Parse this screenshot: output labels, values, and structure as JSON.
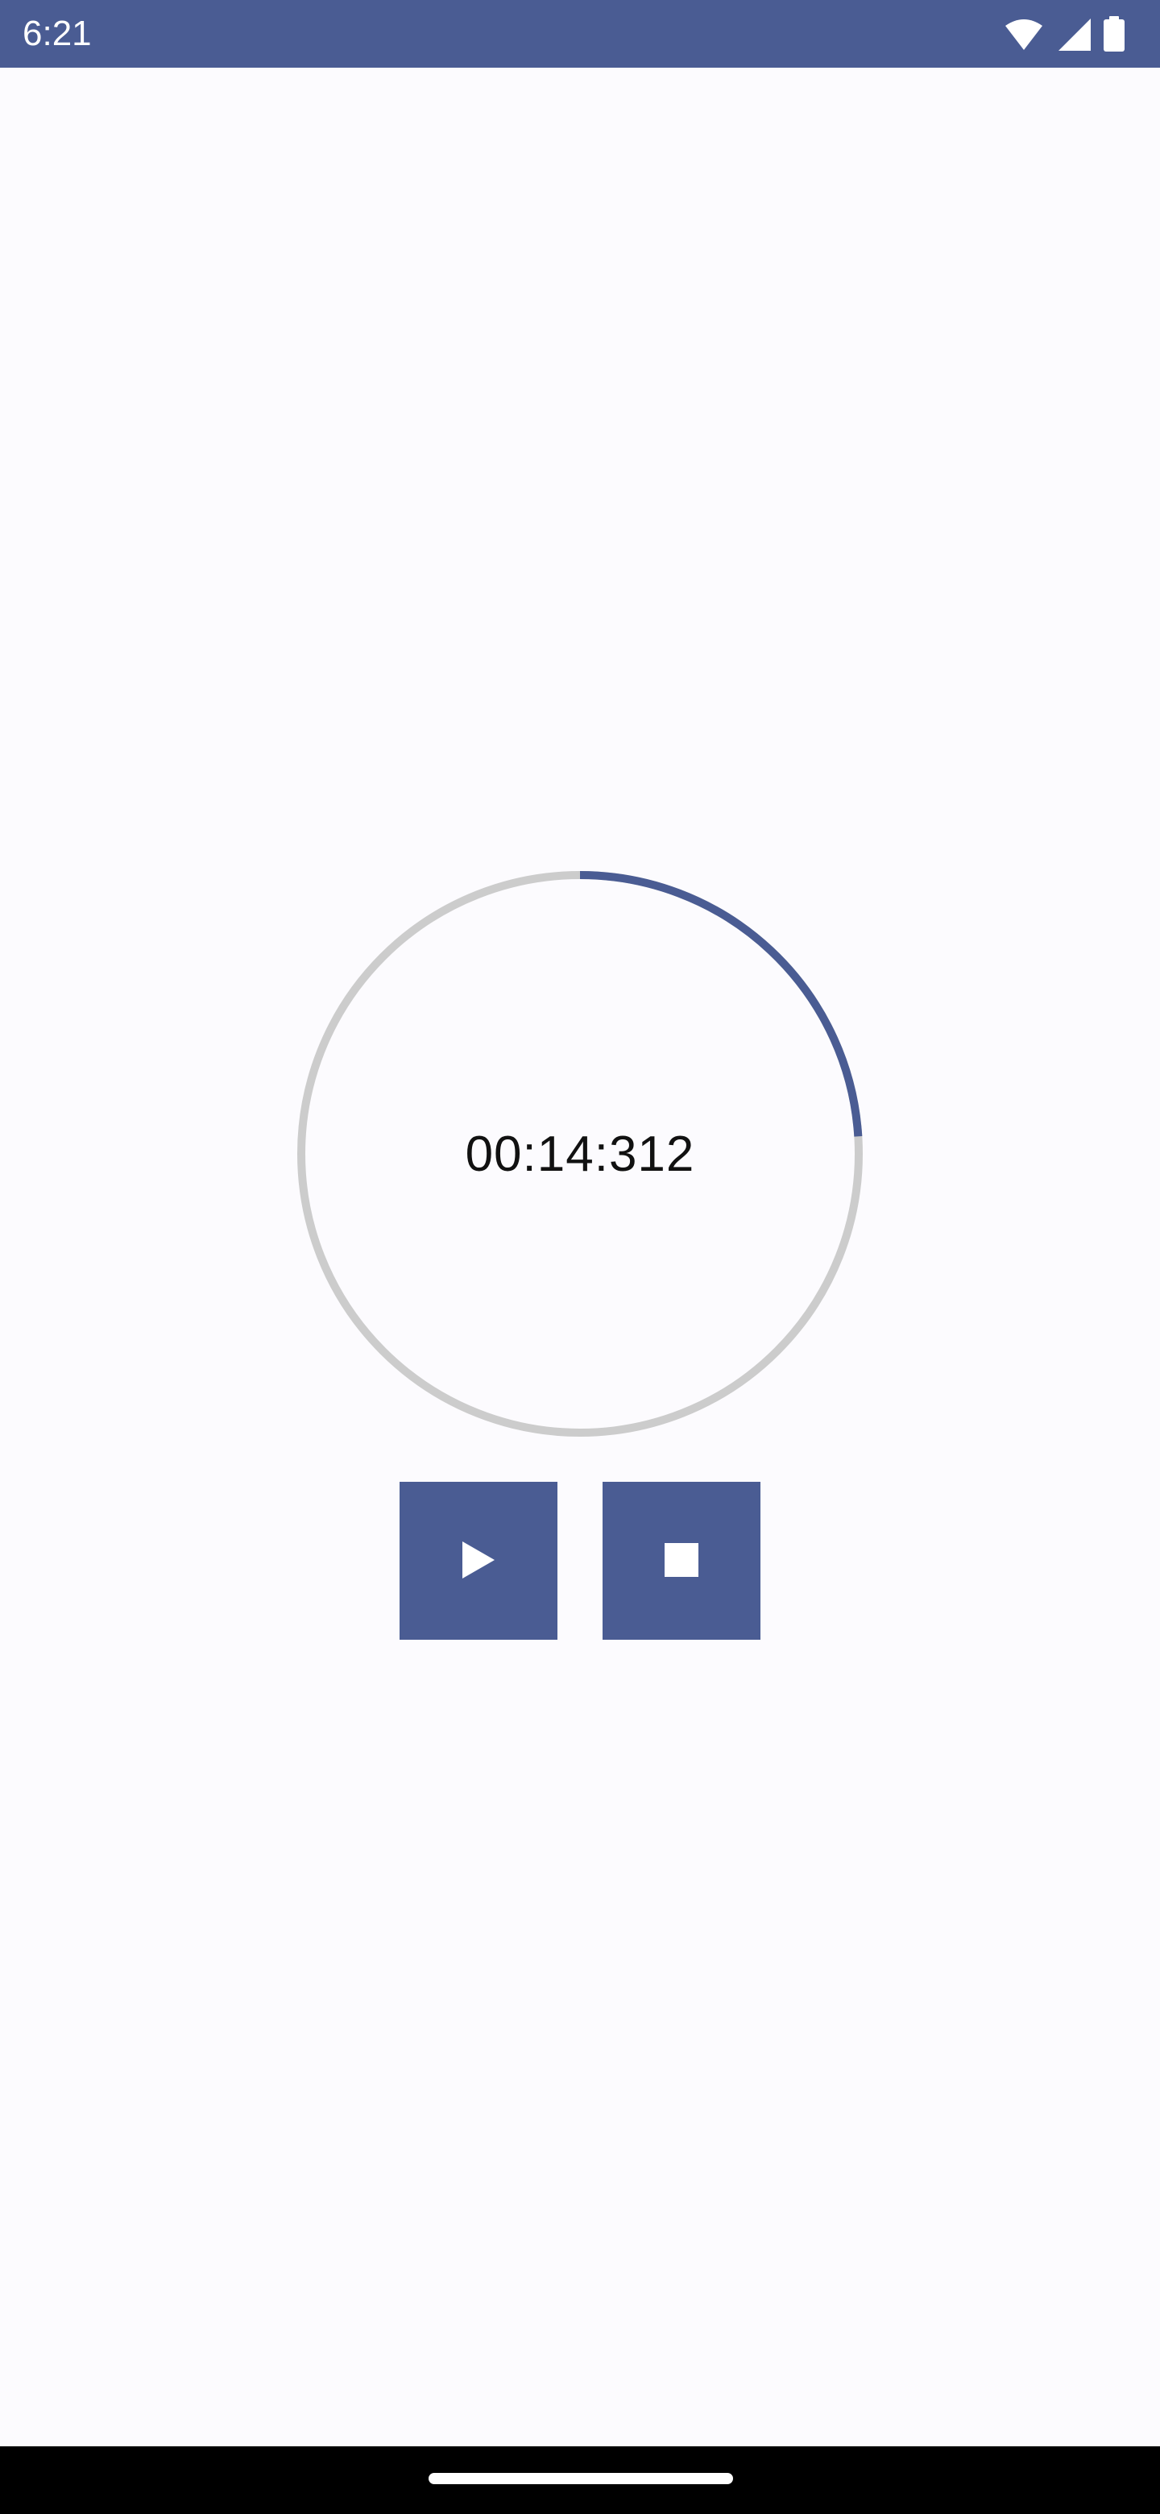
{
  "status_bar": {
    "time": "6:21",
    "background_color": "#4a5c93",
    "icons": [
      "wifi-icon",
      "cellular-signal-icon",
      "battery-icon"
    ]
  },
  "stopwatch": {
    "time_display": "00:14:312",
    "progress_fraction": 0.24,
    "progress_color": "#4a5c93",
    "track_color": "#cccccc"
  },
  "controls": {
    "play_icon": "play-icon",
    "stop_icon": "stop-icon",
    "button_color": "#4a5c93"
  },
  "nav_bar": {
    "background_color": "#000000"
  }
}
